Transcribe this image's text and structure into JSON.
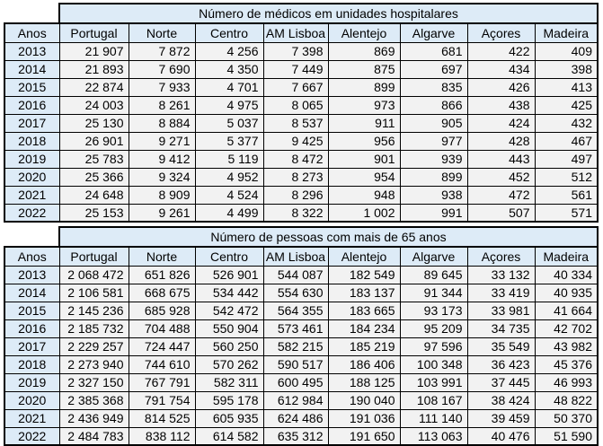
{
  "colors": {
    "header_fill": "#DDEBF7",
    "row_fill": "#F2F2F2",
    "border": "#000000",
    "text": "#000000",
    "background": "#FFFFFF"
  },
  "tables": [
    {
      "title": "Número de médicos em unidades hospitalares",
      "year_header": "Anos",
      "columns": [
        "Portugal",
        "Norte",
        "Centro",
        "AM Lisboa",
        "Alentejo",
        "Algarve",
        "Açores",
        "Madeira"
      ],
      "rows": [
        {
          "year": "2013",
          "values": [
            "21 907",
            "7 872",
            "4 256",
            "7 398",
            "869",
            "681",
            "422",
            "409"
          ]
        },
        {
          "year": "2014",
          "values": [
            "21 893",
            "7 690",
            "4 350",
            "7 449",
            "875",
            "697",
            "434",
            "398"
          ]
        },
        {
          "year": "2015",
          "values": [
            "22 874",
            "7 933",
            "4 701",
            "7 667",
            "899",
            "835",
            "426",
            "413"
          ]
        },
        {
          "year": "2016",
          "values": [
            "24 003",
            "8 261",
            "4 975",
            "8 065",
            "973",
            "866",
            "438",
            "425"
          ]
        },
        {
          "year": "2017",
          "values": [
            "25 130",
            "8 884",
            "5 037",
            "8 537",
            "911",
            "905",
            "424",
            "432"
          ]
        },
        {
          "year": "2018",
          "values": [
            "26 901",
            "9 271",
            "5 377",
            "9 425",
            "956",
            "977",
            "428",
            "467"
          ]
        },
        {
          "year": "2019",
          "values": [
            "25 783",
            "9 412",
            "5 119",
            "8 472",
            "901",
            "939",
            "443",
            "497"
          ]
        },
        {
          "year": "2020",
          "values": [
            "25 366",
            "9 324",
            "4 952",
            "8 273",
            "954",
            "899",
            "452",
            "512"
          ]
        },
        {
          "year": "2021",
          "values": [
            "24 648",
            "8 909",
            "4 524",
            "8 296",
            "948",
            "938",
            "472",
            "561"
          ]
        },
        {
          "year": "2022",
          "values": [
            "25 153",
            "9 261",
            "4 499",
            "8 322",
            "1 002",
            "991",
            "507",
            "571"
          ]
        }
      ]
    },
    {
      "title": "Número de pessoas com mais de 65 anos",
      "year_header": "Anos",
      "columns": [
        "Portugal",
        "Norte",
        "Centro",
        "AM Lisboa",
        "Alentejo",
        "Algarve",
        "Açores",
        "Madeira"
      ],
      "rows": [
        {
          "year": "2013",
          "values": [
            "2 068 472",
            "651 826",
            "526 901",
            "544 087",
            "182 549",
            "89 645",
            "33 132",
            "40 334"
          ]
        },
        {
          "year": "2014",
          "values": [
            "2 106 581",
            "668 675",
            "534 442",
            "554 630",
            "183 137",
            "91 344",
            "33 419",
            "40 935"
          ]
        },
        {
          "year": "2015",
          "values": [
            "2 145 236",
            "685 928",
            "542 472",
            "564 355",
            "183 665",
            "93 173",
            "33 981",
            "41 664"
          ]
        },
        {
          "year": "2016",
          "values": [
            "2 185 732",
            "704 488",
            "550 904",
            "573 461",
            "184 234",
            "95 209",
            "34 735",
            "42 702"
          ]
        },
        {
          "year": "2017",
          "values": [
            "2 229 257",
            "724 447",
            "560 250",
            "582 215",
            "185 219",
            "97 596",
            "35 549",
            "43 982"
          ]
        },
        {
          "year": "2018",
          "values": [
            "2 273 940",
            "744 610",
            "570 262",
            "590 517",
            "186 406",
            "100 348",
            "36 423",
            "45 376"
          ]
        },
        {
          "year": "2019",
          "values": [
            "2 327 150",
            "767 791",
            "582 311",
            "600 495",
            "188 125",
            "103 991",
            "37 445",
            "46 993"
          ]
        },
        {
          "year": "2020",
          "values": [
            "2 385 368",
            "791 754",
            "595 178",
            "612 984",
            "190 040",
            "108 167",
            "38 424",
            "48 822"
          ]
        },
        {
          "year": "2021",
          "values": [
            "2 436 949",
            "814 525",
            "605 935",
            "624 486",
            "191 036",
            "111 140",
            "39 459",
            "50 370"
          ]
        },
        {
          "year": "2022",
          "values": [
            "2 484 783",
            "838 112",
            "614 582",
            "635 312",
            "191 650",
            "113 063",
            "40 476",
            "51 590"
          ]
        }
      ]
    }
  ]
}
